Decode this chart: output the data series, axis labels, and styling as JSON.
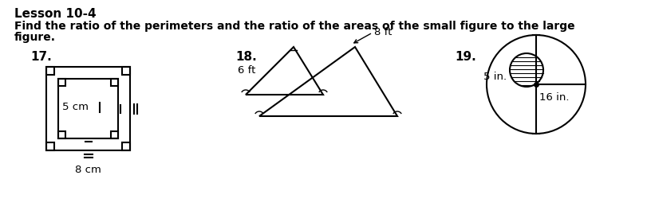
{
  "title": "Lesson 10-4",
  "instruction_line1": "Find the ratio of the perimeters and the ratio of the areas of the small figure to the large",
  "instruction_line2": "figure.",
  "fig17_label": "17.",
  "fig18_label": "18.",
  "fig19_label": "19.",
  "fig17_small_dim": "5 cm",
  "fig17_large_dim": "8 cm",
  "fig18_left_label": "6 ft",
  "fig18_right_label": "8 ft",
  "fig19_small_label": "5 in.",
  "fig19_large_label": "16 in.",
  "bg_color": "#ffffff",
  "line_color": "#000000",
  "title_fontsize": 11,
  "text_fontsize": 10,
  "label_fontsize": 9.5
}
